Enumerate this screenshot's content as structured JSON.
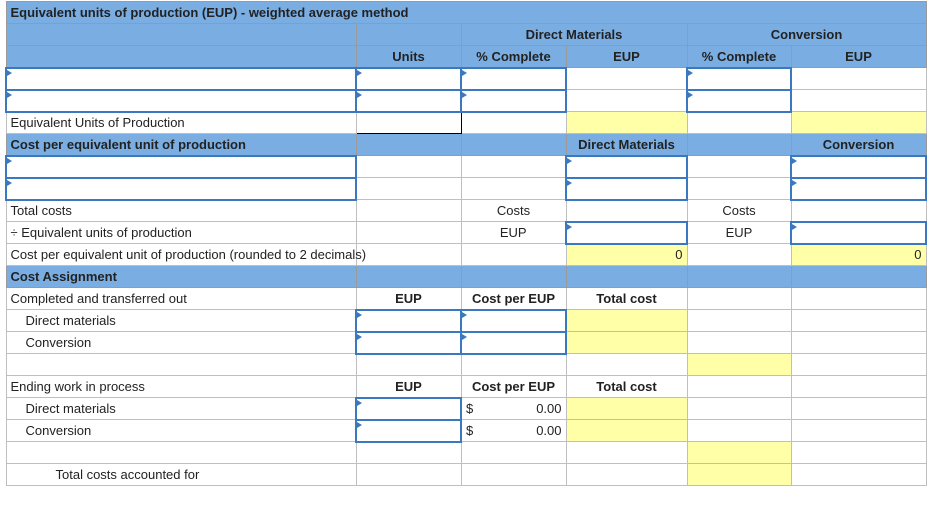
{
  "title": "Equivalent units of production (EUP) - weighted average method",
  "headers": {
    "direct_materials": "Direct Materials",
    "conversion": "Conversion",
    "units": "Units",
    "pct_complete": "% Complete",
    "eup": "EUP"
  },
  "eup_label": "Equivalent Units of Production",
  "cost_per": {
    "title": "Cost per equivalent unit of production",
    "direct_materials": "Direct Materials",
    "conversion": "Conversion",
    "total_costs": "Total costs",
    "divide_eup": "÷ Equivalent units of production",
    "costs": "Costs",
    "eup": "EUP",
    "rounded": "Cost per equivalent unit of production (rounded to 2 decimals)",
    "dm_value": "0",
    "conv_value": "0"
  },
  "assignment": {
    "title": "Cost Assignment",
    "completed": "Completed and transferred out",
    "eup": "EUP",
    "cost_per_eup": "Cost per EUP",
    "total_cost": "Total cost",
    "direct_materials": "Direct materials",
    "conversion": "Conversion",
    "ending": "Ending work in process",
    "currency": "$",
    "dm_cost": "0.00",
    "conv_cost": "0.00",
    "total_accounted": "Total costs accounted for"
  }
}
